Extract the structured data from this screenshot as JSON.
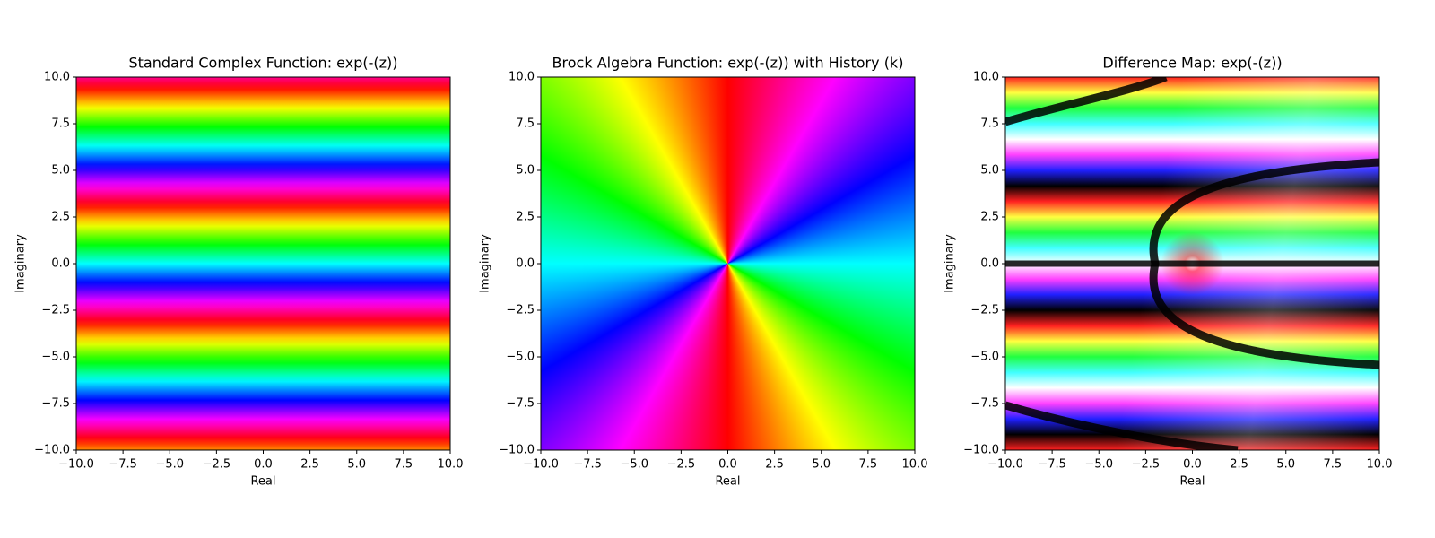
{
  "chart_data": [
    {
      "type": "image",
      "title": "Standard Complex Function: exp(-(z))",
      "xlabel": "Real",
      "ylabel": "Imaginary",
      "xlim": [
        -10,
        10
      ],
      "ylim": [
        -10,
        10
      ],
      "xticks": [
        {
          "value": -10,
          "label": "−10.0"
        },
        {
          "value": -7.5,
          "label": "−7.5"
        },
        {
          "value": -5,
          "label": "−5.0"
        },
        {
          "value": -2.5,
          "label": "−2.5"
        },
        {
          "value": 0,
          "label": "0.0"
        },
        {
          "value": 2.5,
          "label": "2.5"
        },
        {
          "value": 5,
          "label": "5.0"
        },
        {
          "value": 7.5,
          "label": "7.5"
        },
        {
          "value": 10,
          "label": "10.0"
        }
      ],
      "yticks": [
        {
          "value": -10,
          "label": "−10.0"
        },
        {
          "value": -7.5,
          "label": "−7.5"
        },
        {
          "value": -5,
          "label": "−5.0"
        },
        {
          "value": -2.5,
          "label": "−2.5"
        },
        {
          "value": 0,
          "label": "0.0"
        },
        {
          "value": 2.5,
          "label": "2.5"
        },
        {
          "value": 5,
          "label": "5.0"
        },
        {
          "value": 7.5,
          "label": "7.5"
        },
        {
          "value": 10,
          "label": "10.0"
        }
      ]
    },
    {
      "type": "image",
      "title": "Brock Algebra Function: exp(-(z)) with History (k)",
      "xlabel": "Real",
      "ylabel": "Imaginary",
      "xlim": [
        -10,
        10
      ],
      "ylim": [
        -10,
        10
      ],
      "xticks": [
        {
          "value": -10,
          "label": "−10.0"
        },
        {
          "value": -7.5,
          "label": "−7.5"
        },
        {
          "value": -5,
          "label": "−5.0"
        },
        {
          "value": -2.5,
          "label": "−2.5"
        },
        {
          "value": 0,
          "label": "0.0"
        },
        {
          "value": 2.5,
          "label": "2.5"
        },
        {
          "value": 5,
          "label": "5.0"
        },
        {
          "value": 7.5,
          "label": "7.5"
        },
        {
          "value": 10,
          "label": "10.0"
        }
      ],
      "yticks": [
        {
          "value": -10,
          "label": "−10.0"
        },
        {
          "value": -7.5,
          "label": "−7.5"
        },
        {
          "value": -5,
          "label": "−5.0"
        },
        {
          "value": -2.5,
          "label": "−2.5"
        },
        {
          "value": 0,
          "label": "0.0"
        },
        {
          "value": 2.5,
          "label": "2.5"
        },
        {
          "value": 5,
          "label": "5.0"
        },
        {
          "value": 7.5,
          "label": "7.5"
        },
        {
          "value": 10,
          "label": "10.0"
        }
      ]
    },
    {
      "type": "image",
      "title": "Difference Map: exp(-(z))",
      "xlabel": "Real",
      "ylabel": "Imaginary",
      "xlim": [
        -10,
        10
      ],
      "ylim": [
        -10,
        10
      ],
      "xticks": [
        {
          "value": -10,
          "label": "−10.0"
        },
        {
          "value": -7.5,
          "label": "−7.5"
        },
        {
          "value": -5,
          "label": "−5.0"
        },
        {
          "value": -2.5,
          "label": "−2.5"
        },
        {
          "value": 0,
          "label": "0.0"
        },
        {
          "value": 2.5,
          "label": "2.5"
        },
        {
          "value": 5,
          "label": "5.0"
        },
        {
          "value": 7.5,
          "label": "7.5"
        },
        {
          "value": 10,
          "label": "10.0"
        }
      ],
      "yticks": [
        {
          "value": -10,
          "label": "−10.0"
        },
        {
          "value": -7.5,
          "label": "−7.5"
        },
        {
          "value": -5,
          "label": "−5.0"
        },
        {
          "value": -2.5,
          "label": "−2.5"
        },
        {
          "value": 0,
          "label": "0.0"
        },
        {
          "value": 2.5,
          "label": "2.5"
        },
        {
          "value": 5,
          "label": "5.0"
        },
        {
          "value": 7.5,
          "label": "7.5"
        },
        {
          "value": 10,
          "label": "10.0"
        }
      ]
    }
  ]
}
